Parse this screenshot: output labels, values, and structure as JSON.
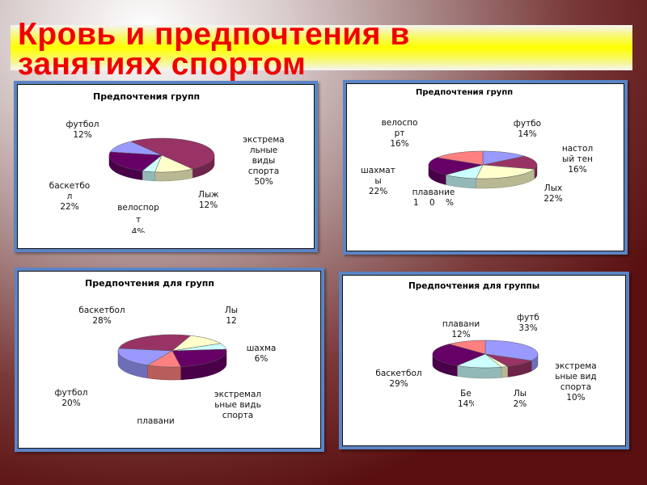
{
  "slide": {
    "title": "Кровь и предпочтения в\nзанятиях спортом"
  },
  "colors": {
    "background_dark": "#5a1010",
    "title_text": "#f20000",
    "title_bar": "#ffff00",
    "box_border": "#5b84c4"
  },
  "chart_data": [
    {
      "type": "pie",
      "title": "Предпочтения групп",
      "start_angle_deg": -79,
      "categories": [
        "футбол",
        "экстремальные виды спорта",
        "Лыжи",
        "велоспорт",
        "баскетбол"
      ],
      "values": [
        12,
        50,
        12,
        4,
        22
      ],
      "labels": [
        "футбол",
        "экстрема\nльные\nвиды\nспорта",
        "Лыж",
        "велоспор\nт",
        "баскетбо\nл"
      ],
      "pct": [
        "12%",
        "50%",
        "12%",
        "4%",
        "22%"
      ],
      "colors": [
        "#9999FF",
        "#993366",
        "#FFFFCC",
        "#CCFFFF",
        "#660066"
      ]
    },
    {
      "type": "pie",
      "title": "Предпочтения групп",
      "start_angle_deg": 0,
      "categories": [
        "футбол",
        "настольный теннис",
        "Лыжи",
        "плавание",
        "шахматы",
        "велоспорт"
      ],
      "values": [
        14,
        16,
        22,
        10,
        22,
        16
      ],
      "labels": [
        "футбо",
        "настол\nый тен",
        "Лых",
        "плавание",
        "шахмат\nы",
        "велоспо\nрт"
      ],
      "pct": [
        "14%",
        "16%",
        "22%",
        "1    0    %",
        "22%",
        "16%"
      ],
      "colors": [
        "#9999FF",
        "#993366",
        "#FFFFCC",
        "#CCFFFF",
        "#660066",
        "#FF8080"
      ]
    },
    {
      "type": "pie",
      "title": "Предпочтения для групп",
      "start_angle_deg": 207,
      "categories": [
        "футбол",
        "баскетбол",
        "Лыжи",
        "шахматы",
        "экстремальные виды спорта",
        "плавание"
      ],
      "values": [
        20,
        28,
        12,
        6,
        24,
        10
      ],
      "labels": [
        "футбол",
        "баскетбол",
        "Лы",
        "шахма",
        "экстремал\nьные видь\nспорта",
        "плавани"
      ],
      "pct": [
        "20%",
        "28%",
        "12",
        "6%",
        "",
        ""
      ],
      "colors": [
        "#9999FF",
        "#993366",
        "#FFFFCC",
        "#CCFFFF",
        "#660066",
        "#FF8080"
      ]
    },
    {
      "type": "pie",
      "title": "Предпочтения для группы",
      "start_angle_deg": 0,
      "categories": [
        "футбол",
        "экстремальные виды спорта",
        "Лыжи",
        "Бег",
        "баскетбол",
        "плавание"
      ],
      "values": [
        33,
        10,
        2,
        14,
        29,
        12
      ],
      "labels": [
        "футб",
        "экстрема\nьные вид\nспорта",
        "Лы",
        "Бе",
        "баскетбол",
        "плавани"
      ],
      "pct": [
        "33",
        "10%",
        "2",
        "14",
        "29%",
        "12%"
      ],
      "colors": [
        "#9999FF",
        "#993366",
        "#FFFFCC",
        "#CCFFFF",
        "#660066",
        "#FF8080"
      ]
    }
  ]
}
